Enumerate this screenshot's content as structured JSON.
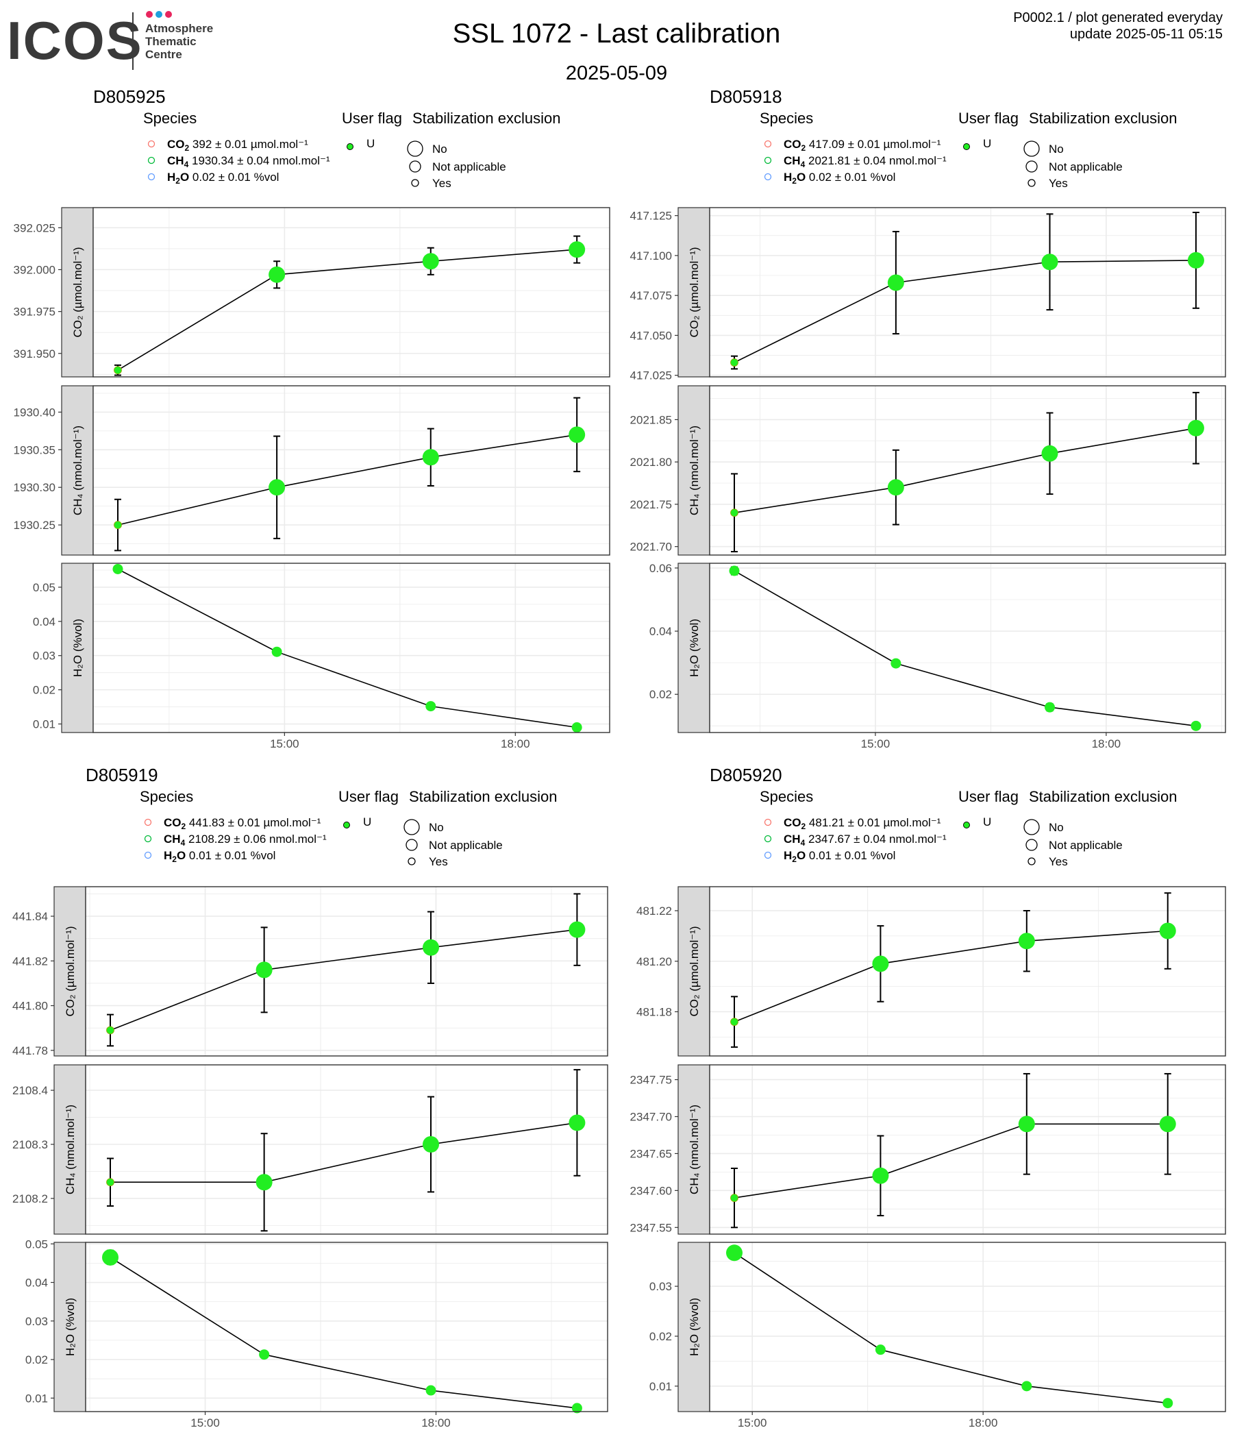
{
  "header": {
    "logo": {
      "wordmark": "ICOS",
      "line1": "Atmosphere",
      "line2": "Thematic",
      "line3": "Centre",
      "dot_colors": [
        "#e8265e",
        "#1fa0dd",
        "#e8265e"
      ]
    },
    "title": "SSL 1072 - Last calibration",
    "subtitle": "2025-05-09",
    "meta_line1": "P0002.1 / plot generated everyday",
    "meta_line2": "update  2025-05-11 05:15"
  },
  "legend_titles": {
    "species": "Species",
    "user_flag": "User flag",
    "stabilization": "Stabilization exclusion"
  },
  "legend_labels": {
    "flag_u": "U",
    "stab_no": "No",
    "stab_na": "Not applicable",
    "stab_yes": "Yes"
  },
  "colors": {
    "point_fill": "#22ee22",
    "co2_legend": "#f8766d",
    "ch4_legend": "#00ba38",
    "h2o_legend": "#619cff",
    "strip": "#d9d9d9"
  },
  "chart_data": [
    {
      "type": "line",
      "panel_title": "D805925",
      "legend": {
        "co2": "392 ± 0.01 µmol.mol⁻¹",
        "ch4": "1930.34 ± 0.04 nmol.mol⁻¹",
        "h2o": "0.02 ± 0.01 %vol"
      },
      "x_ticks": [
        "15:00",
        "18:00"
      ],
      "x": [
        "12:50",
        "14:54",
        "16:54",
        "18:48"
      ],
      "facets": [
        {
          "species": "CO2",
          "ylabel": "CO₂ (µmol.mol⁻¹)",
          "ylim": [
            391.936,
            392.037
          ],
          "yticks": [
            "391.950",
            "391.975",
            "392.000",
            "392.025"
          ],
          "values": [
            391.94,
            391.997,
            392.005,
            392.012
          ],
          "err": [
            0.003,
            0.008,
            0.008,
            0.008
          ],
          "stab": [
            "yes",
            "no",
            "no",
            "no"
          ]
        },
        {
          "species": "CH4",
          "ylabel": "CH₄ (nmol.mol⁻¹)",
          "ylim": [
            1930.21,
            1930.435
          ],
          "yticks": [
            "1930.25",
            "1930.30",
            "1930.35",
            "1930.40"
          ],
          "values": [
            1930.25,
            1930.3,
            1930.34,
            1930.37
          ],
          "err": [
            0.034,
            0.068,
            0.038,
            0.049
          ],
          "stab": [
            "yes",
            "no",
            "no",
            "no"
          ]
        },
        {
          "species": "H2O",
          "ylabel": "H₂O (%vol)",
          "ylim": [
            0.0075,
            0.057
          ],
          "yticks": [
            "0.01",
            "0.02",
            "0.03",
            "0.04",
            "0.05"
          ],
          "values": [
            0.0553,
            0.0311,
            0.0152,
            0.009
          ],
          "err": [
            0.0003,
            0.0007,
            0.0004,
            0.0003
          ],
          "stab": [
            "yes",
            "yes",
            "yes",
            "yes"
          ]
        }
      ]
    },
    {
      "type": "line",
      "panel_title": "D805918",
      "legend": {
        "co2": "417.09 ± 0.01 µmol.mol⁻¹",
        "ch4": "2021.81 ± 0.04 nmol.mol⁻¹",
        "h2o": "0.02 ± 0.01 %vol"
      },
      "x_ticks": [
        "15:00",
        "18:00"
      ],
      "x": [
        "13:10",
        "15:16",
        "17:16",
        "19:10"
      ],
      "facets": [
        {
          "species": "CO2",
          "ylabel": "CO₂ (µmol.mol⁻¹)",
          "ylim": [
            417.024,
            417.13
          ],
          "yticks": [
            "417.025",
            "417.050",
            "417.075",
            "417.100",
            "417.125"
          ],
          "values": [
            417.033,
            417.083,
            417.096,
            417.097
          ],
          "err": [
            0.004,
            0.032,
            0.03,
            0.03
          ],
          "stab": [
            "yes",
            "no",
            "no",
            "no"
          ]
        },
        {
          "species": "CH4",
          "ylabel": "CH₄ (nmol.mol⁻¹)",
          "ylim": [
            2021.69,
            2021.89
          ],
          "yticks": [
            "2021.70",
            "2021.75",
            "2021.80",
            "2021.85"
          ],
          "values": [
            2021.74,
            2021.77,
            2021.81,
            2021.84
          ],
          "err": [
            0.046,
            0.044,
            0.048,
            0.042
          ],
          "stab": [
            "yes",
            "no",
            "no",
            "no"
          ]
        },
        {
          "species": "H2O",
          "ylabel": "H₂O (%vol)",
          "ylim": [
            0.0079,
            0.0615
          ],
          "yticks": [
            "0.02",
            "0.04",
            "0.06"
          ],
          "values": [
            0.0591,
            0.0298,
            0.0159,
            0.01
          ],
          "err": [
            0.0012,
            0.001,
            0.0011,
            0.0006
          ],
          "stab": [
            "yes",
            "yes",
            "yes",
            "yes"
          ]
        }
      ]
    },
    {
      "type": "line",
      "panel_title": "D805919",
      "legend": {
        "co2": "441.83 ± 0.01 µmol.mol⁻¹",
        "ch4": "2108.29 ± 0.06 nmol.mol⁻¹",
        "h2o": "0.01 ± 0.01 %vol"
      },
      "x_ticks": [
        "15:00",
        "18:00"
      ],
      "x": [
        "13:46",
        "15:46",
        "17:56",
        "19:50"
      ],
      "facets": [
        {
          "species": "CO2",
          "ylabel": "CO₂ (µmol.mol⁻¹)",
          "ylim": [
            441.7775,
            441.8532
          ],
          "yticks": [
            "441.78",
            "441.80",
            "441.82",
            "441.84"
          ],
          "values": [
            441.789,
            441.816,
            441.826,
            441.834
          ],
          "err": [
            0.007,
            0.019,
            0.016,
            0.016
          ],
          "stab": [
            "yes",
            "no",
            "no",
            "no"
          ]
        },
        {
          "species": "CH4",
          "ylabel": "CH₄ (nmol.mol⁻¹)",
          "ylim": [
            2108.134,
            2108.447
          ],
          "yticks": [
            "2108.2",
            "2108.3",
            "2108.4"
          ],
          "values": [
            2108.23,
            2108.23,
            2108.3,
            2108.34
          ],
          "err": [
            0.044,
            0.09,
            0.088,
            0.098
          ],
          "stab": [
            "yes",
            "no",
            "no",
            "no"
          ]
        },
        {
          "species": "H2O",
          "ylabel": "H₂O (%vol)",
          "ylim": [
            0.0065,
            0.0504
          ],
          "yticks": [
            "0.01",
            "0.02",
            "0.03",
            "0.04",
            "0.05"
          ],
          "values": [
            0.0465,
            0.0213,
            0.012,
            0.0074
          ],
          "err": [
            0.0018,
            0.0007,
            0.0003,
            0.0003
          ],
          "stab": [
            "no",
            "yes",
            "yes",
            "yes"
          ]
        }
      ]
    },
    {
      "type": "line",
      "panel_title": "D805920",
      "legend": {
        "co2": "481.21 ± 0.01 µmol.mol⁻¹",
        "ch4": "2347.67 ± 0.04 nmol.mol⁻¹",
        "h2o": "0.01 ± 0.01 %vol"
      },
      "x_ticks": [
        "15:00",
        "18:00"
      ],
      "x": [
        "14:46",
        "16:40",
        "18:34",
        "20:24"
      ],
      "facets": [
        {
          "species": "CO2",
          "ylabel": "CO₂ (µmol.mol⁻¹)",
          "ylim": [
            481.1625,
            481.2295
          ],
          "yticks": [
            "481.18",
            "481.20",
            "481.22"
          ],
          "values": [
            481.176,
            481.199,
            481.208,
            481.212
          ],
          "err": [
            0.01,
            0.015,
            0.012,
            0.015
          ],
          "stab": [
            "yes",
            "no",
            "no",
            "no"
          ]
        },
        {
          "species": "CH4",
          "ylabel": "CH₄ (nmol.mol⁻¹)",
          "ylim": [
            2347.541,
            2347.77
          ],
          "yticks": [
            "2347.55",
            "2347.60",
            "2347.65",
            "2347.70",
            "2347.75"
          ],
          "values": [
            2347.59,
            2347.62,
            2347.69,
            2347.69
          ],
          "err": [
            0.04,
            0.054,
            0.068,
            0.068
          ],
          "stab": [
            "yes",
            "no",
            "no",
            "no"
          ]
        },
        {
          "species": "H2O",
          "ylabel": "H₂O (%vol)",
          "ylim": [
            0.0049,
            0.0388
          ],
          "yticks": [
            "0.01",
            "0.02",
            "0.03"
          ],
          "values": [
            0.0367,
            0.0173,
            0.01,
            0.0066
          ],
          "err": [
            0.0012,
            0.0004,
            0.0003,
            0.0002
          ],
          "stab": [
            "no",
            "yes",
            "yes",
            "yes"
          ]
        }
      ]
    }
  ]
}
